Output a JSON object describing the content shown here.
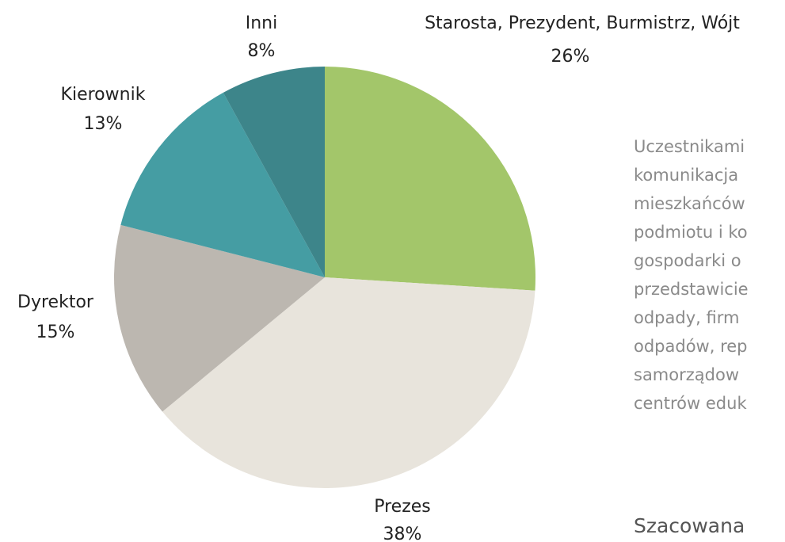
{
  "chart_data": {
    "type": "pie",
    "categories": [
      "Starosta, Prezydent, Burmistrz, Wójt",
      "Prezes",
      "Dyrektor",
      "Kierownik",
      "Inni"
    ],
    "values": [
      26,
      38,
      15,
      13,
      8
    ],
    "value_labels": [
      "26%",
      "38%",
      "15%",
      "13%",
      "8%"
    ],
    "colors": [
      "#a3c66a",
      "#e8e4dc",
      "#bcb7b0",
      "#459da3",
      "#3d858a"
    ]
  },
  "text_panel": {
    "lines": [
      "Uczestnikami",
      "komunikacja",
      "mieszkańców",
      "podmiotu i ko",
      "gospodarki o",
      "przedstawicie",
      "odpady, firm",
      "odpadów, rep",
      "samorządow",
      "centrów eduk"
    ],
    "heading": "Szacowana"
  }
}
